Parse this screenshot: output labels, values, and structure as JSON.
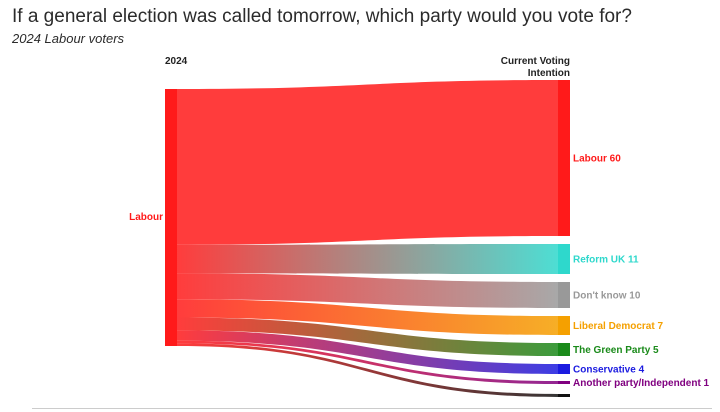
{
  "header": {
    "title": "If a general election was called tomorrow, which party would you vote for?",
    "subtitle": "2024 Labour voters"
  },
  "columns": {
    "left_label": "2024",
    "right_label_line1": "Current Voting",
    "right_label_line2": "Intention"
  },
  "chart_data": {
    "type": "sankey",
    "source": {
      "name": "Labour",
      "color": "#ff1a1a"
    },
    "targets": [
      {
        "name": "Labour",
        "value": 60,
        "color": "#ff1a1a",
        "label": "Labour 60"
      },
      {
        "name": "Reform UK",
        "value": 11,
        "color": "#2ed8cc",
        "label": "Reform UK 11"
      },
      {
        "name": "Don't know",
        "value": 10,
        "color": "#999999",
        "label": "Don't know 10"
      },
      {
        "name": "Liberal Democrat",
        "value": 7,
        "color": "#f5a000",
        "label": "Liberal Democrat 7"
      },
      {
        "name": "The Green Party",
        "value": 5,
        "color": "#1a8a1a",
        "label": "The Green Party 5"
      },
      {
        "name": "Conservative",
        "value": 4,
        "color": "#1b1be0",
        "label": "Conservative 4"
      },
      {
        "name": "Another party/Independent",
        "value": 1,
        "color": "#800080",
        "label": "Another party/Independent 1"
      },
      {
        "name": "",
        "value": 1,
        "color": "#111111",
        "label": ""
      }
    ]
  }
}
